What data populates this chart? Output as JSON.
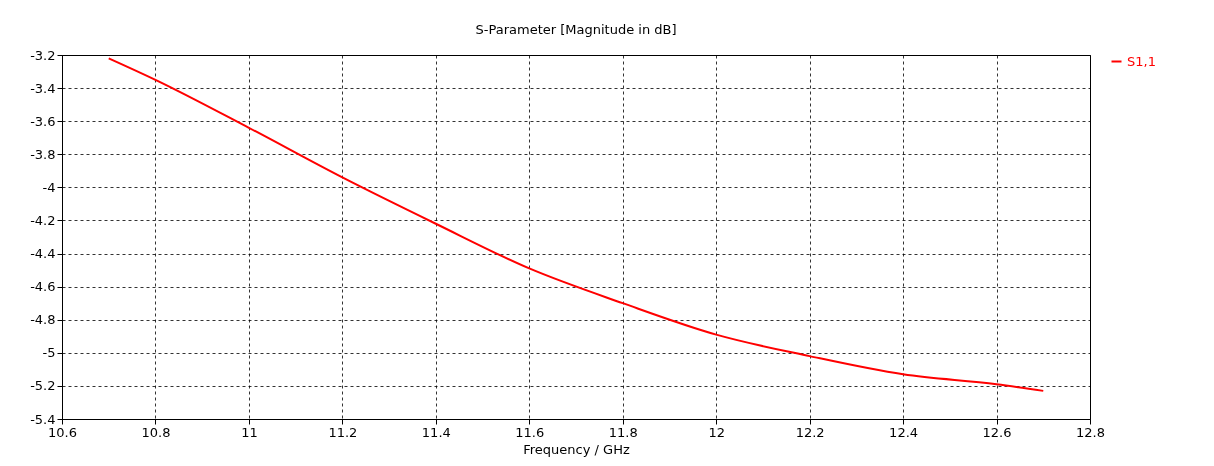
{
  "chart_data": {
    "type": "line",
    "title": "S-Parameter [Magnitude in dB]",
    "xlabel": "Frequency / GHz",
    "x": [
      10.7,
      10.8,
      11.0,
      11.2,
      11.4,
      11.6,
      11.8,
      12.0,
      12.2,
      12.4,
      12.6,
      12.7
    ],
    "series": [
      {
        "name": "S1,1",
        "color": "#ff0000",
        "values": [
          -3.22,
          -3.35,
          -3.64,
          -3.94,
          -4.22,
          -4.49,
          -4.7,
          -4.89,
          -5.02,
          -5.13,
          -5.19,
          -5.23
        ]
      }
    ],
    "xlim": [
      10.6,
      12.8
    ],
    "xticks": [
      10.6,
      10.8,
      11,
      11.2,
      11.4,
      11.6,
      11.8,
      12,
      12.2,
      12.4,
      12.6,
      12.8
    ],
    "ylim": [
      -5.4,
      -3.2
    ],
    "yticks": [
      -5.4,
      -5.2,
      -5,
      -4.8,
      -4.6,
      -4.4,
      -4.2,
      -4,
      -3.8,
      -3.6,
      -3.4,
      -3.2
    ],
    "grid": true,
    "legend": "top right",
    "marker": "none",
    "line_style": "solid"
  }
}
